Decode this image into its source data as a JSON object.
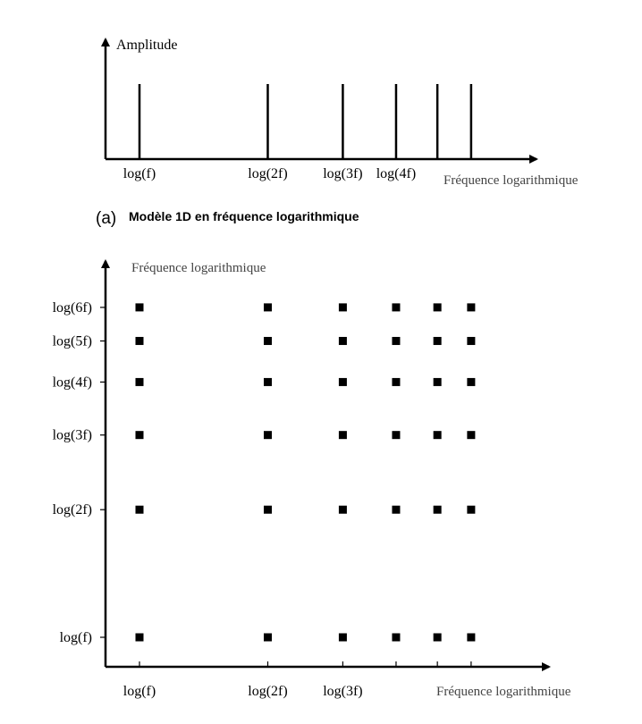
{
  "panel_a": {
    "y_axis_title": "Amplitude",
    "x_axis_title": "Fréquence logarithmique",
    "tick_labels": [
      "log(f)",
      "log(2f)",
      "log(3f)",
      "log(4f)"
    ],
    "caption_letter": "(a)",
    "caption_text": "Modèle 1D en fréquence logarithmique"
  },
  "panel_b": {
    "y_axis_title": "Fréquence logarithmique",
    "x_axis_title": "Fréquence logarithmique",
    "x_tick_labels": [
      "log(f)",
      "log(2f)",
      "log(3f)"
    ],
    "y_tick_labels": [
      "log(6f)",
      "log(5f)",
      "log(4f)",
      "log(3f)",
      "log(2f)",
      "log(f)"
    ]
  },
  "chart_data": [
    {
      "type": "bar",
      "description_axis": "log scale of harmonic index",
      "x": [
        1,
        2,
        3,
        4,
        5,
        6
      ],
      "values": [
        1,
        1,
        1,
        1,
        1,
        1
      ],
      "xlabel": "Fréquence logarithmique",
      "ylabel": "Amplitude",
      "x_scale": "log",
      "xlim": [
        0.78,
        11
      ],
      "tick_labels": [
        "log(f)",
        "log(2f)",
        "log(3f)",
        "log(4f)"
      ]
    },
    {
      "type": "scatter",
      "x_scale": "log",
      "y_scale": "log",
      "x_harmonics": [
        1,
        2,
        3,
        4,
        5,
        6
      ],
      "y_harmonics": [
        1,
        2,
        3,
        4,
        5,
        6
      ],
      "xlabel": "Fréquence logarithmique",
      "ylabel": "Fréquence logarithmique",
      "x_tick_labels": [
        "log(f)",
        "log(2f)",
        "log(3f)"
      ],
      "y_tick_labels": [
        "log(6f)",
        "log(5f)",
        "log(4f)",
        "log(3f)",
        "log(2f)",
        "log(f)"
      ],
      "marker": "square",
      "marker_color": "#000000"
    }
  ]
}
